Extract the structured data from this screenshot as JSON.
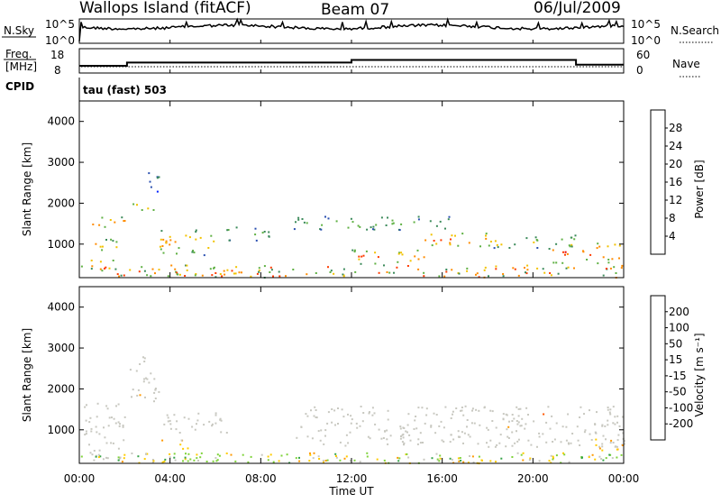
{
  "header": {
    "site": "Wallops Island (fitACF)",
    "beam": "Beam 07",
    "date": "06/Jul/2009"
  },
  "noise_panel": {
    "left_label": "N.Sky",
    "right_label": "N.Search",
    "left_ticks": [
      "10^5",
      "10^0"
    ],
    "right_ticks": [
      "10^5",
      "10^0"
    ]
  },
  "freq_panel": {
    "left_label_line1": "Freq.",
    "left_label_line2": "[MHz]",
    "left_ticks": [
      "18",
      "8"
    ],
    "right_ticks": [
      "60",
      "0"
    ],
    "right_label": "Nave"
  },
  "cpid": {
    "label": "CPID",
    "mode_text": "tau (fast) 503"
  },
  "power_panel": {
    "ylabel": "Slant Range [km]",
    "yticks": [
      "1000",
      "2000",
      "3000",
      "4000"
    ],
    "colorbar_label": "Power [dB]",
    "colorbar_ticks": [
      "4",
      "8",
      "12",
      "16",
      "20",
      "24",
      "28"
    ],
    "colors": [
      "#0020ff",
      "#2a4fb0",
      "#3b8a5a",
      "#5fb043",
      "#f2c200",
      "#ff8c00",
      "#ff3b00",
      "#e80000"
    ]
  },
  "velocity_panel": {
    "ylabel": "Slant Range [km]",
    "yticks": [
      "1000",
      "2000",
      "3000",
      "4000"
    ],
    "colorbar_label": "Velocity [m s⁻¹]",
    "colorbar_ticks": [
      "200",
      "100",
      "50",
      "15",
      "-15",
      "-50",
      "-100",
      "-200"
    ],
    "colors": [
      "#1838b8",
      "#2f7a6a",
      "#35a348",
      "#7fd33a",
      "#c8c8c0",
      "#ffcc00",
      "#ff9900",
      "#ff5500",
      "#e00000"
    ]
  },
  "x_axis": {
    "ticks": [
      "00:00",
      "04:00",
      "08:00",
      "12:00",
      "16:00",
      "20:00",
      "00:00"
    ],
    "label": "Time UT"
  },
  "chart_data": {
    "type": "heatmap",
    "title": "Wallops Island (fitACF)",
    "xlabel": "Time UT",
    "ylabel": "Slant Range [km]",
    "x_range_hours": [
      0,
      24
    ],
    "y_range_km": [
      180,
      4500
    ],
    "frequency_mhz_steps": [
      {
        "start_h": 0.0,
        "end_h": 2.1,
        "value": 10.5
      },
      {
        "start_h": 2.1,
        "end_h": 12.0,
        "value": 12.0
      },
      {
        "start_h": 12.0,
        "end_h": 21.9,
        "value": 13.2
      },
      {
        "start_h": 21.9,
        "end_h": 24.0,
        "value": 11.0
      }
    ],
    "power_db_regions": [
      {
        "t0": 0.2,
        "t1": 2.0,
        "r0": 1400,
        "r1": 1700,
        "db": 24
      },
      {
        "t0": 0.2,
        "t1": 2.0,
        "r0": 850,
        "r1": 1150,
        "db": 22
      },
      {
        "t0": 0.2,
        "t1": 1.5,
        "r0": 400,
        "r1": 650,
        "db": 26
      },
      {
        "t0": 2.2,
        "t1": 3.3,
        "r0": 1800,
        "r1": 2050,
        "db": 22
      },
      {
        "t0": 2.7,
        "t1": 3.5,
        "r0": 2300,
        "r1": 2800,
        "db": 10
      },
      {
        "t0": 3.5,
        "t1": 6.2,
        "r0": 750,
        "r1": 1400,
        "db": 22
      },
      {
        "t0": 3.2,
        "t1": 7.2,
        "r0": 250,
        "r1": 450,
        "db": 26
      },
      {
        "t0": 6.2,
        "t1": 8.5,
        "r0": 1100,
        "r1": 1450,
        "db": 14
      },
      {
        "t0": 9.3,
        "t1": 16.5,
        "r0": 1350,
        "r1": 1700,
        "db": 14
      },
      {
        "t0": 12.0,
        "t1": 15.5,
        "r0": 500,
        "r1": 900,
        "db": 24
      },
      {
        "t0": 15.0,
        "t1": 18.0,
        "r0": 950,
        "r1": 1300,
        "db": 26
      },
      {
        "t0": 18.0,
        "t1": 22.0,
        "r0": 900,
        "r1": 1250,
        "db": 18
      },
      {
        "t0": 20.8,
        "t1": 24.0,
        "r0": 550,
        "r1": 1050,
        "db": 28
      }
    ],
    "velocity_ms_regions": [
      {
        "t0": 0.2,
        "t1": 2.0,
        "r0": 300,
        "r1": 1700,
        "v": 0
      },
      {
        "t0": 2.2,
        "t1": 3.5,
        "r0": 1700,
        "r1": 2800,
        "v": 0
      },
      {
        "t0": 3.5,
        "t1": 6.5,
        "r0": 900,
        "r1": 1450,
        "v": 0
      },
      {
        "t0": 3.5,
        "t1": 4.8,
        "r0": 550,
        "r1": 800,
        "v": -50
      },
      {
        "t0": 4.5,
        "t1": 6.5,
        "r0": 250,
        "r1": 450,
        "v": 40
      },
      {
        "t0": 9.5,
        "t1": 24.0,
        "r0": 600,
        "r1": 1600,
        "v": 0
      },
      {
        "t0": 22.5,
        "t1": 24.0,
        "r0": 500,
        "r1": 800,
        "v": -50
      }
    ]
  }
}
